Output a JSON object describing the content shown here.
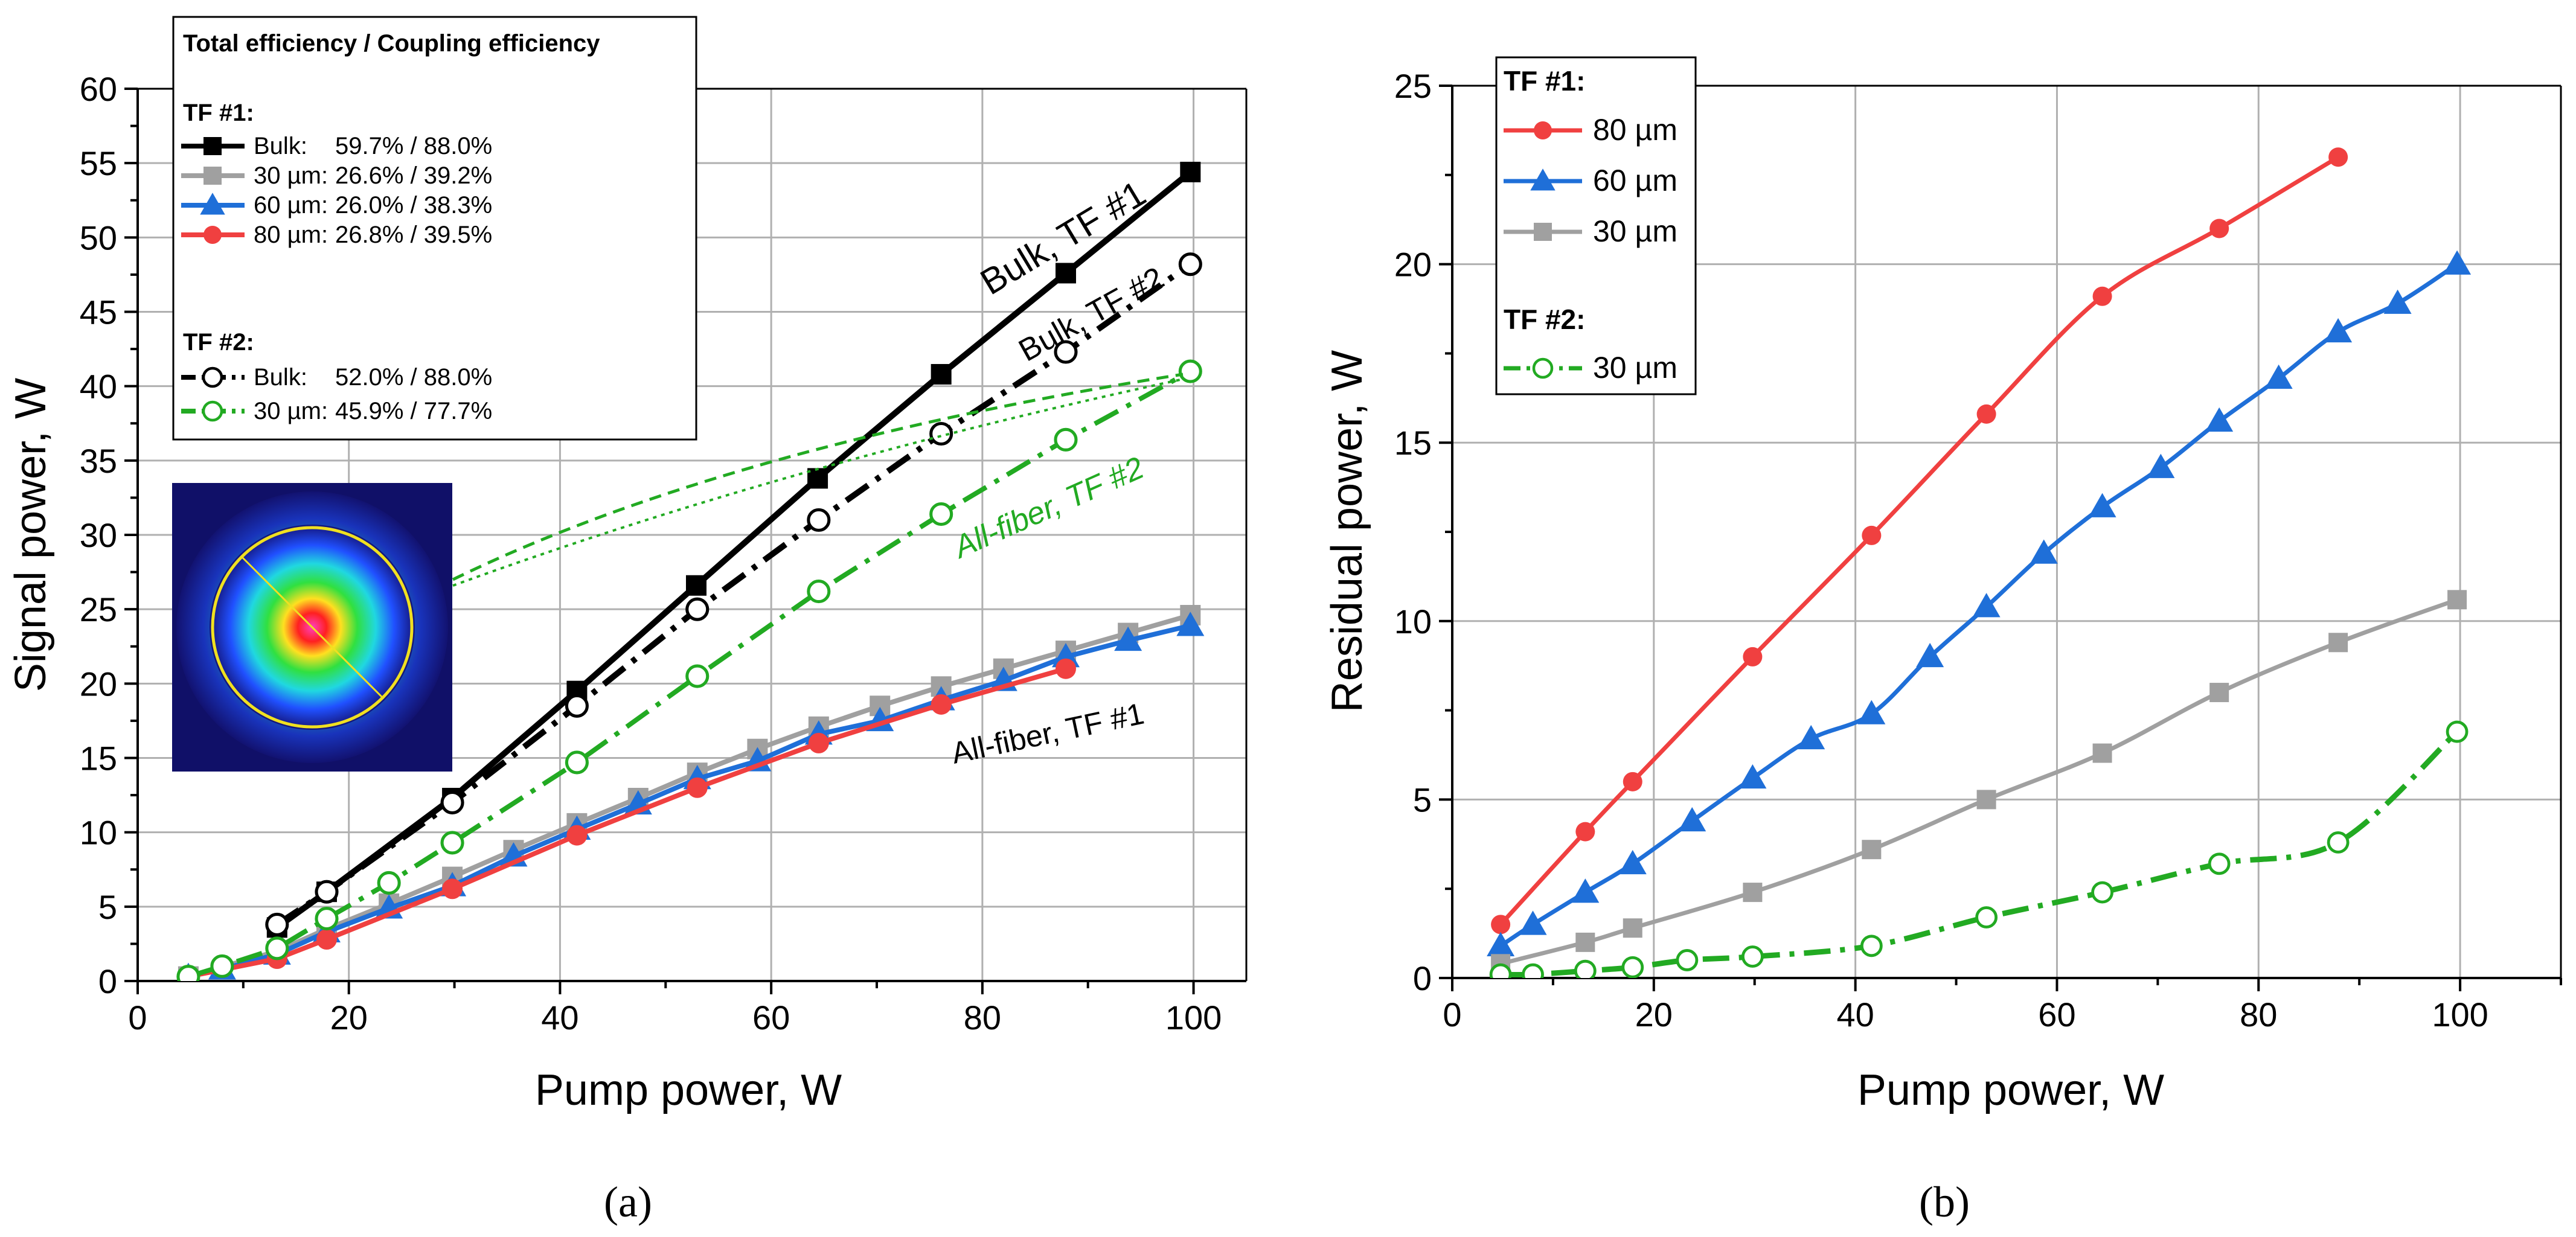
{
  "chart_data": [
    {
      "type": "line",
      "panel": "a",
      "caption": "(a)",
      "xlabel": "Pump power, W",
      "ylabel": "Signal power, W",
      "xlim": [
        0,
        105
      ],
      "ylim": [
        0,
        60
      ],
      "xticks": [
        0,
        20,
        40,
        60,
        80,
        100
      ],
      "yticks": [
        0,
        5,
        10,
        15,
        20,
        25,
        30,
        35,
        40,
        45,
        50,
        55,
        60
      ],
      "grid": true,
      "legend": {
        "title": "Total efficiency / Coupling efficiency",
        "groups": [
          {
            "label": "TF #1:",
            "entries": [
              {
                "name": "Bulk:",
                "value": "59.7% / 88.0%",
                "series": "tf1_bulk"
              },
              {
                "name": "30 µm:",
                "value": "26.6% / 39.2%",
                "series": "tf1_30"
              },
              {
                "name": "60 µm:",
                "value": "26.0% / 38.3%",
                "series": "tf1_60"
              },
              {
                "name": "80 µm:",
                "value": "26.8% / 39.5%",
                "series": "tf1_80"
              }
            ]
          },
          {
            "label": "TF #2:",
            "entries": [
              {
                "name": "Bulk:",
                "value": "52.0% / 88.0%",
                "series": "tf2_bulk"
              },
              {
                "name": "30 µm:",
                "value": "45.9% / 77.7%",
                "series": "tf2_30"
              }
            ]
          }
        ]
      },
      "annotations": [
        {
          "text": "Bulk, TF #1",
          "color": "#000000"
        },
        {
          "text": "Bulk, TF #2",
          "color": "#000000"
        },
        {
          "text": "All-fiber, TF #2",
          "color": "#22aa22"
        },
        {
          "text": "All-fiber, TF #1",
          "color": "#000000"
        }
      ],
      "inset": {
        "description": "beam profile image",
        "name": "beam-profile"
      },
      "series": [
        {
          "id": "tf1_bulk",
          "name": "TF #1 Bulk",
          "color": "#000000",
          "marker": "square",
          "filled": true,
          "dash": "solid",
          "x": [
            13.2,
            17.9,
            29.8,
            41.6,
            52.9,
            64.4,
            76.1,
            87.9,
            99.7
          ],
          "y": [
            3.6,
            6.0,
            12.3,
            19.5,
            26.6,
            33.8,
            40.8,
            47.6,
            54.4
          ]
        },
        {
          "id": "tf1_30",
          "name": "TF #1 30 µm",
          "color": "#a0a0a0",
          "marker": "square",
          "filled": true,
          "dash": "solid",
          "x": [
            4.8,
            13.2,
            17.9,
            23.8,
            29.8,
            35.6,
            41.6,
            47.4,
            53.0,
            58.7,
            64.5,
            70.3,
            76.1,
            82.0,
            87.9,
            93.8,
            99.7
          ],
          "y": [
            0.3,
            2.0,
            3.5,
            5.2,
            7.0,
            8.8,
            10.6,
            12.3,
            14.0,
            15.6,
            17.1,
            18.5,
            19.8,
            21.0,
            22.2,
            23.4,
            24.6
          ]
        },
        {
          "id": "tf1_60",
          "name": "TF #1 60 µm",
          "color": "#1f6fd8",
          "marker": "triangle",
          "filled": true,
          "dash": "solid",
          "x": [
            4.8,
            8.0,
            13.2,
            17.9,
            23.8,
            29.8,
            35.6,
            41.6,
            47.4,
            53.0,
            58.7,
            64.5,
            70.3,
            76.1,
            82.0,
            87.9,
            93.8,
            99.7
          ],
          "y": [
            0.3,
            0.8,
            1.8,
            3.3,
            4.9,
            6.4,
            8.4,
            10.2,
            11.9,
            13.6,
            14.8,
            16.6,
            17.5,
            18.9,
            20.2,
            21.8,
            22.9,
            23.9
          ]
        },
        {
          "id": "tf1_80",
          "name": "TF #1 80 µm",
          "color": "#f04040",
          "marker": "circle",
          "filled": true,
          "dash": "solid",
          "x": [
            4.8,
            13.2,
            17.9,
            29.8,
            41.6,
            53.0,
            64.5,
            76.1,
            87.9
          ],
          "y": [
            0.3,
            1.5,
            2.8,
            6.2,
            9.8,
            13.0,
            16.0,
            18.6,
            21.0
          ]
        },
        {
          "id": "tf2_bulk",
          "name": "TF #2 Bulk",
          "color": "#000000",
          "marker": "circle",
          "filled": false,
          "dash": "dashdot",
          "x": [
            13.2,
            17.9,
            29.8,
            41.6,
            53.0,
            64.5,
            76.1,
            87.9,
            99.7
          ],
          "y": [
            3.8,
            6.0,
            12.0,
            18.5,
            25.0,
            31.0,
            36.8,
            42.3,
            48.2
          ]
        },
        {
          "id": "tf2_30",
          "name": "TF #2 30 µm",
          "color": "#22aa22",
          "marker": "circle",
          "filled": false,
          "dash": "dashdot",
          "x": [
            4.8,
            8.0,
            13.2,
            17.9,
            23.8,
            29.8,
            41.6,
            53.0,
            64.5,
            76.1,
            87.9,
            99.7
          ],
          "y": [
            0.3,
            1.0,
            2.2,
            4.2,
            6.6,
            9.3,
            14.7,
            20.5,
            26.2,
            31.4,
            36.4,
            41.0
          ]
        }
      ]
    },
    {
      "type": "line",
      "panel": "b",
      "caption": "(b)",
      "xlabel": "Pump power, W",
      "ylabel": "Residual power, W",
      "xlim": [
        0,
        110
      ],
      "ylim": [
        0,
        25
      ],
      "xticks": [
        0,
        20,
        40,
        60,
        80,
        100
      ],
      "yticks": [
        0,
        5,
        10,
        15,
        20,
        25
      ],
      "grid": true,
      "legend": {
        "groups": [
          {
            "label": "TF #1:",
            "entries": [
              {
                "name": "80 µm",
                "series": "r_tf1_80"
              },
              {
                "name": "60 µm",
                "series": "r_tf1_60"
              },
              {
                "name": "30 µm",
                "series": "r_tf1_30"
              }
            ]
          },
          {
            "label": "TF #2:",
            "entries": [
              {
                "name": "30 µm",
                "series": "r_tf2_30"
              }
            ]
          }
        ]
      },
      "series": [
        {
          "id": "r_tf1_80",
          "name": "TF #1 80 µm",
          "color": "#f04040",
          "marker": "circle",
          "filled": true,
          "dash": "solid",
          "x": [
            4.8,
            13.2,
            17.9,
            29.8,
            41.6,
            53.0,
            64.5,
            76.1,
            87.9
          ],
          "y": [
            1.5,
            4.1,
            5.5,
            9.0,
            12.4,
            15.8,
            19.1,
            21.0,
            23.0
          ]
        },
        {
          "id": "r_tf1_60",
          "name": "TF #1 60 µm",
          "color": "#1f6fd8",
          "marker": "triangle",
          "filled": true,
          "dash": "solid",
          "x": [
            4.8,
            8.0,
            13.2,
            17.9,
            23.8,
            29.8,
            35.6,
            41.6,
            47.4,
            53.0,
            58.7,
            64.5,
            70.3,
            76.1,
            82.0,
            87.9,
            93.8,
            99.7
          ],
          "y": [
            0.9,
            1.5,
            2.4,
            3.2,
            4.4,
            5.6,
            6.7,
            7.4,
            9.0,
            10.4,
            11.9,
            13.2,
            14.3,
            15.6,
            16.8,
            18.1,
            18.9,
            20.0
          ]
        },
        {
          "id": "r_tf1_30",
          "name": "TF #1 30 µm",
          "color": "#a0a0a0",
          "marker": "square",
          "filled": true,
          "dash": "solid",
          "x": [
            4.8,
            13.2,
            17.9,
            29.8,
            41.6,
            53.0,
            64.5,
            76.1,
            87.9,
            99.7
          ],
          "y": [
            0.4,
            1.0,
            1.4,
            2.4,
            3.6,
            5.0,
            6.3,
            8.0,
            9.4,
            10.6
          ]
        },
        {
          "id": "r_tf2_30",
          "name": "TF #2 30 µm",
          "color": "#22aa22",
          "marker": "circle",
          "filled": false,
          "dash": "dashdot",
          "x": [
            4.8,
            8.0,
            13.2,
            17.9,
            23.3,
            29.8,
            41.6,
            53.0,
            64.5,
            76.1,
            87.9,
            99.7
          ],
          "y": [
            0.1,
            0.1,
            0.2,
            0.3,
            0.5,
            0.6,
            0.9,
            1.7,
            2.4,
            3.2,
            3.8,
            6.9
          ]
        }
      ]
    }
  ]
}
